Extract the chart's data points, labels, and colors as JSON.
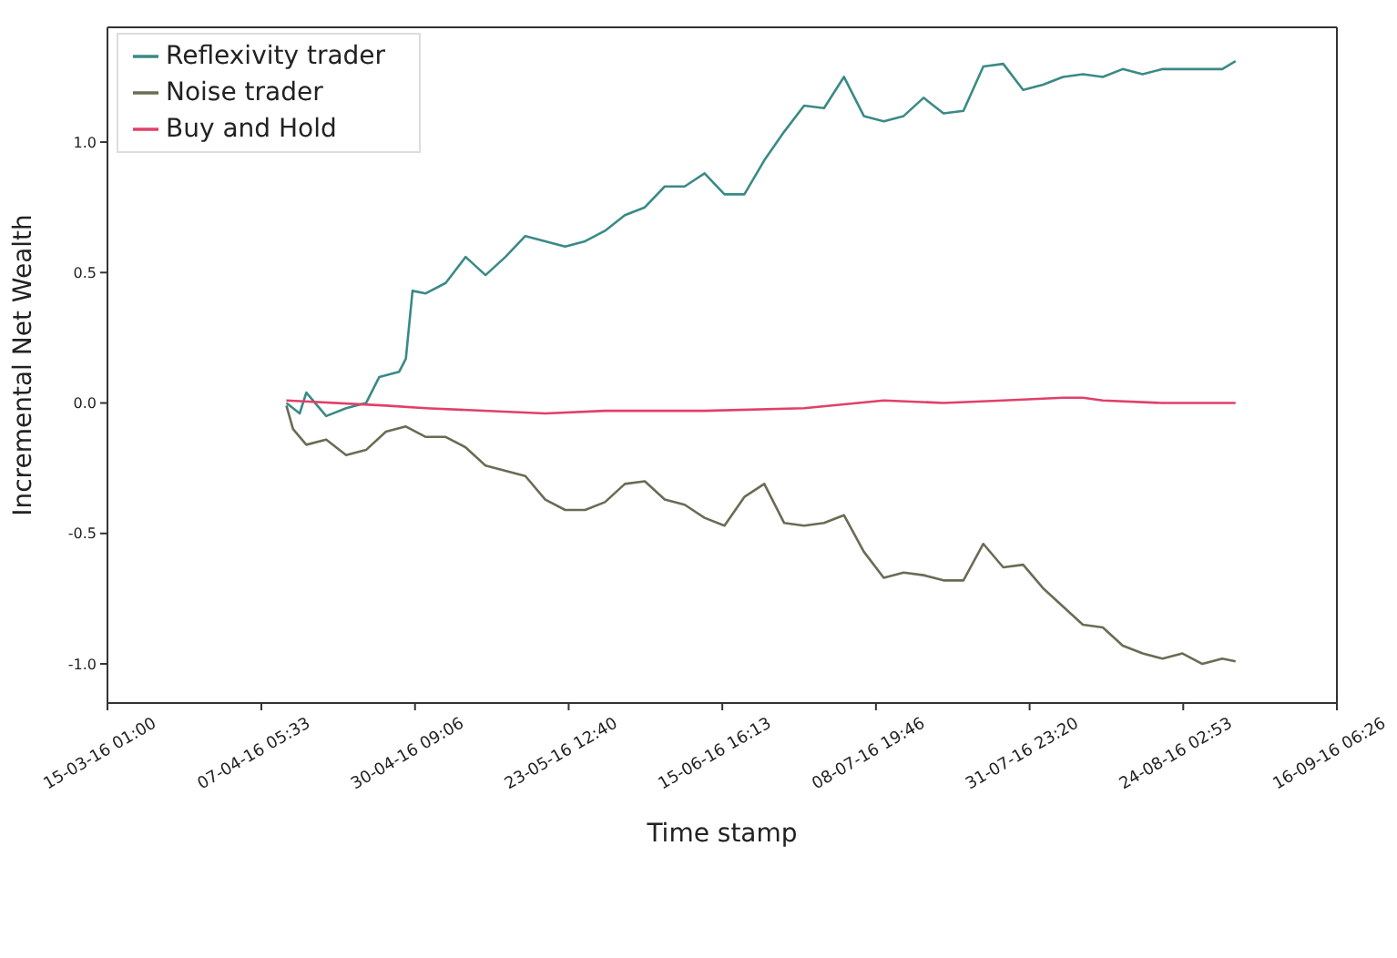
{
  "chart_data": {
    "type": "line",
    "xlabel": "Time stamp",
    "ylabel": "Incremental Net Wealth",
    "legend": "top left",
    "grid": false,
    "marker": "none",
    "line_style": "solid",
    "xlim": [
      "2016-03-15T01:00",
      "2016-09-16T06:26"
    ],
    "xticks": [
      {
        "value": "2016-03-15T01:00",
        "label": "15-03-16 01:00"
      },
      {
        "value": "2016-04-07T05:33",
        "label": "07-04-16 05:33"
      },
      {
        "value": "2016-04-30T09:06",
        "label": "30-04-16 09:06"
      },
      {
        "value": "2016-05-23T12:40",
        "label": "23-05-16 12:40"
      },
      {
        "value": "2016-06-15T16:13",
        "label": "15-06-16 16:13"
      },
      {
        "value": "2016-07-08T19:46",
        "label": "08-07-16 19:46"
      },
      {
        "value": "2016-07-31T23:20",
        "label": "31-07-16 23:20"
      },
      {
        "value": "2016-08-24T02:53",
        "label": "24-08-16 02:53"
      },
      {
        "value": "2016-09-16T06:26",
        "label": "16-09-16 06:26"
      }
    ],
    "ylim": [
      -1.15,
      1.44
    ],
    "yticks": [
      {
        "value": -1,
        "label": "-1.0"
      },
      {
        "value": -0.5,
        "label": "-0.5"
      },
      {
        "value": 0,
        "label": "0.0"
      },
      {
        "value": 0.5,
        "label": "0.5"
      },
      {
        "value": 1,
        "label": "1.0"
      }
    ],
    "series": [
      {
        "name": "Reflexivity trader",
        "color": "#3a8a86",
        "x": [
          "2016-04-11",
          "2016-04-13",
          "2016-04-14",
          "2016-04-17",
          "2016-04-20",
          "2016-04-23",
          "2016-04-25",
          "2016-04-28",
          "2016-04-29",
          "2016-04-30",
          "2016-05-02",
          "2016-05-05",
          "2016-05-08",
          "2016-05-11",
          "2016-05-14",
          "2016-05-17",
          "2016-05-20",
          "2016-05-23",
          "2016-05-26",
          "2016-05-29",
          "2016-06-01",
          "2016-06-04",
          "2016-06-07",
          "2016-06-10",
          "2016-06-13",
          "2016-06-16",
          "2016-06-19",
          "2016-06-22",
          "2016-06-25",
          "2016-06-28",
          "2016-07-01",
          "2016-07-04",
          "2016-07-07",
          "2016-07-10",
          "2016-07-13",
          "2016-07-16",
          "2016-07-19",
          "2016-07-22",
          "2016-07-25",
          "2016-07-28",
          "2016-07-31",
          "2016-08-03",
          "2016-08-06",
          "2016-08-09",
          "2016-08-12",
          "2016-08-15",
          "2016-08-18",
          "2016-08-21",
          "2016-08-24",
          "2016-08-27",
          "2016-08-30",
          "2016-09-01"
        ],
        "values": [
          0.0,
          -0.04,
          0.04,
          -0.05,
          -0.02,
          0.0,
          0.1,
          0.12,
          0.17,
          0.43,
          0.42,
          0.46,
          0.56,
          0.49,
          0.56,
          0.64,
          0.62,
          0.6,
          0.62,
          0.66,
          0.72,
          0.75,
          0.83,
          0.83,
          0.88,
          0.8,
          0.8,
          0.93,
          1.04,
          1.14,
          1.13,
          1.25,
          1.1,
          1.08,
          1.1,
          1.17,
          1.11,
          1.12,
          1.29,
          1.3,
          1.2,
          1.22,
          1.25,
          1.26,
          1.25,
          1.28,
          1.26,
          1.28,
          1.28,
          1.28,
          1.28,
          1.31
        ]
      },
      {
        "name": "Noise trader",
        "color": "#6b6b55",
        "x": [
          "2016-04-11",
          "2016-04-12",
          "2016-04-14",
          "2016-04-17",
          "2016-04-20",
          "2016-04-23",
          "2016-04-26",
          "2016-04-29",
          "2016-05-02",
          "2016-05-05",
          "2016-05-08",
          "2016-05-11",
          "2016-05-14",
          "2016-05-17",
          "2016-05-20",
          "2016-05-23",
          "2016-05-26",
          "2016-05-29",
          "2016-06-01",
          "2016-06-04",
          "2016-06-07",
          "2016-06-10",
          "2016-06-13",
          "2016-06-16",
          "2016-06-19",
          "2016-06-22",
          "2016-06-25",
          "2016-06-28",
          "2016-07-01",
          "2016-07-04",
          "2016-07-07",
          "2016-07-10",
          "2016-07-13",
          "2016-07-16",
          "2016-07-19",
          "2016-07-22",
          "2016-07-25",
          "2016-07-28",
          "2016-07-31",
          "2016-08-03",
          "2016-08-06",
          "2016-08-09",
          "2016-08-12",
          "2016-08-15",
          "2016-08-18",
          "2016-08-21",
          "2016-08-24",
          "2016-08-27",
          "2016-08-30",
          "2016-09-01"
        ],
        "values": [
          -0.01,
          -0.1,
          -0.16,
          -0.14,
          -0.2,
          -0.18,
          -0.11,
          -0.09,
          -0.13,
          -0.13,
          -0.17,
          -0.24,
          -0.26,
          -0.28,
          -0.37,
          -0.41,
          -0.41,
          -0.38,
          -0.31,
          -0.3,
          -0.37,
          -0.39,
          -0.44,
          -0.47,
          -0.36,
          -0.31,
          -0.46,
          -0.47,
          -0.46,
          -0.43,
          -0.57,
          -0.67,
          -0.65,
          -0.66,
          -0.68,
          -0.68,
          -0.54,
          -0.63,
          -0.62,
          -0.71,
          -0.78,
          -0.85,
          -0.86,
          -0.93,
          -0.96,
          -0.98,
          -0.96,
          -1.0,
          -0.98,
          -0.99
        ]
      },
      {
        "name": "Buy and Hold",
        "color": "#e0406a",
        "x": [
          "2016-04-11",
          "2016-04-26",
          "2016-05-02",
          "2016-05-20",
          "2016-05-29",
          "2016-06-13",
          "2016-06-28",
          "2016-07-10",
          "2016-07-19",
          "2016-07-28",
          "2016-08-06",
          "2016-08-09",
          "2016-08-12",
          "2016-08-21",
          "2016-09-01"
        ],
        "values": [
          0.01,
          -0.01,
          -0.02,
          -0.04,
          -0.03,
          -0.03,
          -0.02,
          0.01,
          0.0,
          0.01,
          0.02,
          0.02,
          0.01,
          0.0,
          0.0
        ]
      }
    ]
  }
}
